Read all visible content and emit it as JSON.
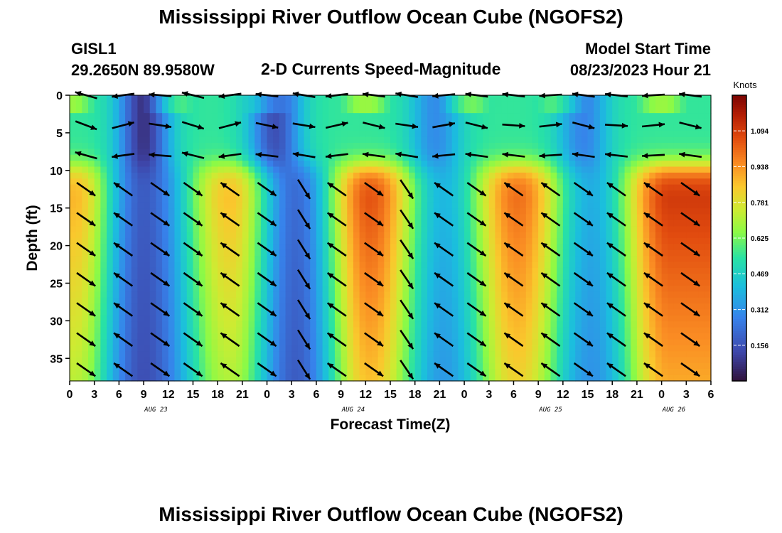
{
  "page_title": "Mississippi River Outflow Ocean Cube (NGOFS2)",
  "station": {
    "id": "GISL1",
    "coords": "29.2650N  89.9580W"
  },
  "model_start": {
    "label": "Model Start Time",
    "value": "08/23/2023 Hour 21"
  },
  "chart_data": {
    "type": "heatmap",
    "title": "2-D Currents Speed-Magnitude",
    "xlabel": "Forecast Time(Z)",
    "ylabel": "Depth (ft)",
    "colorbar_label": "Knots",
    "colorbar_ticks": [
      "1.094",
      "0.938",
      "0.781",
      "0.625",
      "0.469",
      "0.312",
      "0.156"
    ],
    "colorbar_range": [
      0.0,
      1.25
    ],
    "x_tick_labels": [
      "0",
      "3",
      "6",
      "9",
      "12",
      "15",
      "18",
      "21",
      "0",
      "3",
      "6",
      "9",
      "12",
      "15",
      "18",
      "21",
      "0",
      "3",
      "6",
      "9",
      "12",
      "15",
      "18",
      "21",
      "0",
      "3",
      "6"
    ],
    "x_hours_range": [
      0,
      78
    ],
    "date_labels": [
      {
        "text": "AUG 23",
        "hour": 10.5
      },
      {
        "text": "AUG 24",
        "hour": 34.5
      },
      {
        "text": "AUG 25",
        "hour": 58.5
      },
      {
        "text": "AUG 26",
        "hour": 73.5
      }
    ],
    "y_ticks": [
      0,
      5,
      10,
      15,
      20,
      25,
      30,
      35
    ],
    "ylim": [
      0,
      38
    ],
    "grid": false,
    "speed_field": {
      "description_units": "knots",
      "surface_layer_depth_ft": 9.5,
      "deep_peaks": [
        {
          "hour": 0.5,
          "speed": 0.88
        },
        {
          "hour": 19.5,
          "speed": 0.86
        },
        {
          "hour": 36.5,
          "speed": 1.05
        },
        {
          "hour": 54.5,
          "speed": 1.0
        },
        {
          "hour": 73.0,
          "speed": 1.1
        }
      ],
      "deep_troughs": [
        {
          "hour": 9.0,
          "speed": 0.18
        },
        {
          "hour": 27.5,
          "speed": 0.22
        },
        {
          "hour": 45.5,
          "speed": 0.4
        },
        {
          "hour": 63.5,
          "speed": 0.38
        }
      ],
      "surface_lows": [
        {
          "hour": 9.0,
          "speed": 0.08
        },
        {
          "hour": 25.0,
          "speed": 0.15
        },
        {
          "hour": 44.5,
          "speed": 0.3
        },
        {
          "hour": 62.5,
          "speed": 0.28
        }
      ]
    },
    "vector_columns_hours": [
      2,
      6.5,
      11,
      15,
      19.5,
      24,
      28.5,
      32.5,
      37,
      41,
      45.5,
      49.5,
      54,
      58.5,
      62.5,
      66.5,
      71,
      75.5
    ],
    "vector_rows_depth_ft": [
      0,
      4,
      8,
      12.5,
      16.5,
      20.5,
      24.5,
      28.5,
      32.5,
      36.5
    ]
  }
}
